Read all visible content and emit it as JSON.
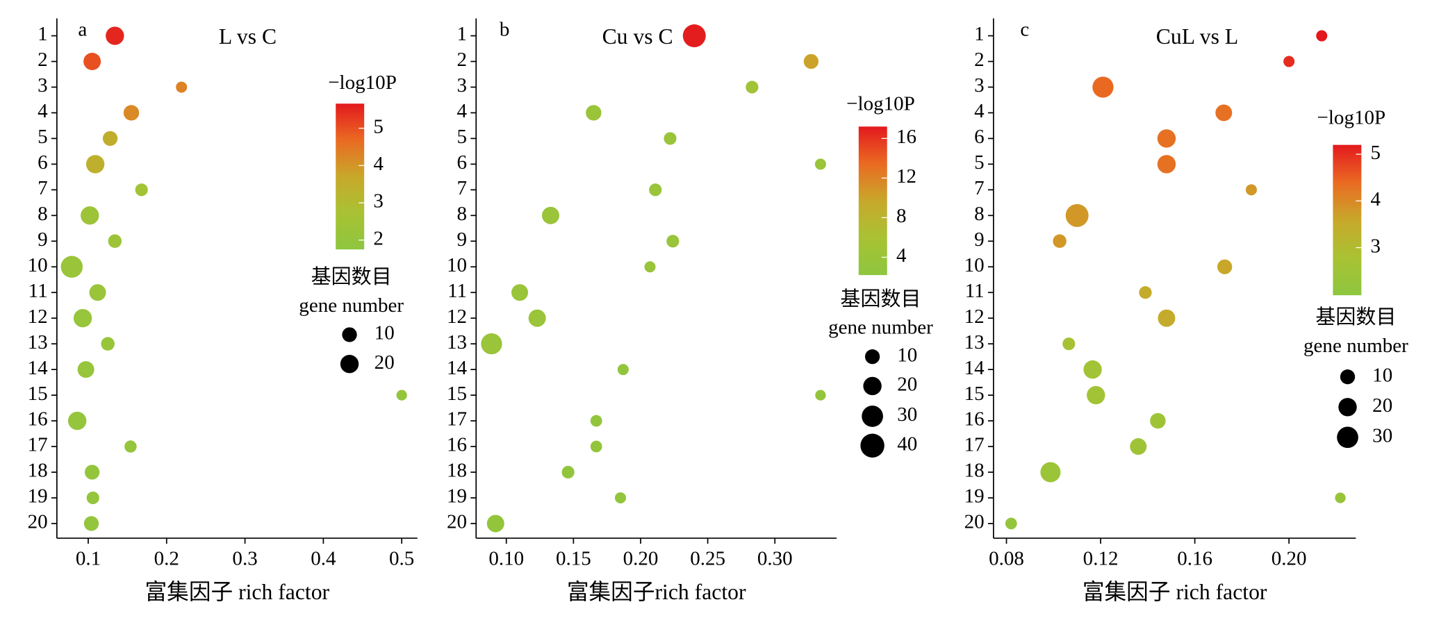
{
  "chart_data": [
    {
      "type": "bubble",
      "panel_label": "a",
      "title": "L vs C",
      "x_label": "富集因子 rich factor",
      "categories": [
        "1",
        "2",
        "3",
        "4",
        "5",
        "6",
        "7",
        "8",
        "9",
        "10",
        "11",
        "12",
        "13",
        "14",
        "15",
        "16",
        "17",
        "18",
        "19",
        "20"
      ],
      "x": [
        0.134,
        0.105,
        0.219,
        0.155,
        0.128,
        0.109,
        0.168,
        0.102,
        0.134,
        0.079,
        0.112,
        0.093,
        0.125,
        0.097,
        0.5,
        0.086,
        0.154,
        0.105,
        0.106,
        0.104
      ],
      "sizes": [
        20,
        17,
        2,
        12,
        10,
        20,
        5,
        20,
        7,
        32,
        15,
        20,
        7,
        15,
        1,
        20,
        4,
        10,
        5,
        10
      ],
      "color_values": [
        5.5,
        5.0,
        4.3,
        4.2,
        3.5,
        3.4,
        2.5,
        2.3,
        2.3,
        2.2,
        2.2,
        2.1,
        2.1,
        2.1,
        2.0,
        2.0,
        2.0,
        2.0,
        2.0,
        2.0
      ],
      "xlim": [
        0.06,
        0.52
      ],
      "xticks": [
        0.1,
        0.2,
        0.3,
        0.4,
        0.5
      ],
      "colorbar_title": "−log10P",
      "clim": [
        1.75,
        5.66
      ],
      "cticks": [
        2,
        3,
        4,
        5
      ],
      "size_legend_title": [
        "基因数目",
        "gene number"
      ],
      "size_legend": [
        10,
        20
      ],
      "colormap": [
        "#8dc63f",
        "#a9c233",
        "#c8a82a",
        "#ea6a22",
        "#e3191e"
      ]
    },
    {
      "type": "bubble",
      "panel_label": "b",
      "title": "Cu vs C",
      "x_label": "富集因子rich factor",
      "categories": [
        "1",
        "2",
        "3",
        "4",
        "5",
        "6",
        "7",
        "8",
        "9",
        "10",
        "11",
        "12",
        "13",
        "14",
        "15",
        "17",
        "16",
        "18",
        "19",
        "20"
      ],
      "x": [
        0.24,
        0.327,
        0.283,
        0.165,
        0.222,
        0.334,
        0.211,
        0.133,
        0.224,
        0.207,
        0.11,
        0.123,
        0.089,
        0.187,
        0.334,
        0.167,
        0.167,
        0.146,
        0.185,
        0.092
      ],
      "sizes": [
        36,
        10,
        5,
        12,
        5,
        2,
        5,
        17,
        5,
        2,
        15,
        17,
        29,
        2,
        1,
        3,
        3,
        5,
        2,
        17
      ],
      "color_values": [
        17,
        10,
        5,
        4,
        4,
        4,
        4,
        4,
        4,
        4,
        4,
        4,
        4,
        3,
        3,
        3,
        3,
        3,
        3,
        3
      ],
      "xlim": [
        0.0775,
        0.346
      ],
      "xticks": [
        {
          "value": 0.1,
          "label": "0.10"
        },
        0.15,
        {
          "value": 0.2,
          "label": "0.20"
        },
        0.25,
        {
          "value": 0.3,
          "label": "0.30"
        }
      ],
      "colorbar_title": "−log10P",
      "clim": [
        2.2,
        17.2
      ],
      "cticks": [
        4,
        8,
        12,
        16
      ],
      "size_legend_title": [
        "基因数目",
        "gene number"
      ],
      "size_legend": [
        10,
        20,
        30,
        40
      ],
      "colormap": [
        "#8dc63f",
        "#a9c233",
        "#c8a82a",
        "#ea6a22",
        "#e3191e"
      ]
    },
    {
      "type": "bubble",
      "panel_label": "c",
      "title": "CuL vs L",
      "x_label": "富集因子 rich factor",
      "categories": [
        "1",
        "2",
        "3",
        "4",
        "6",
        "5",
        "7",
        "8",
        "9",
        "10",
        "11",
        "12",
        "13",
        "14",
        "15",
        "16",
        "17",
        "18",
        "19",
        "20"
      ],
      "x": [
        0.2139,
        0.2,
        0.121,
        0.1723,
        0.148,
        0.148,
        0.184,
        0.11,
        0.1026,
        0.1727,
        0.139,
        0.148,
        0.1065,
        0.1166,
        0.118,
        0.1443,
        0.136,
        0.0987,
        0.2218,
        0.082
      ],
      "sizes": [
        2,
        2,
        29,
        15,
        20,
        20,
        2,
        36,
        7,
        10,
        5,
        17,
        5,
        20,
        20,
        12,
        15,
        26,
        1,
        3
      ],
      "color_values": [
        5.2,
        5.0,
        4.4,
        4.3,
        4.3,
        4.3,
        3.8,
        3.8,
        3.8,
        3.6,
        3.5,
        3.5,
        2.7,
        2.6,
        2.6,
        2.5,
        2.5,
        2.4,
        2.3,
        2.2
      ],
      "xlim": [
        0.0745,
        0.2284
      ],
      "xticks": [
        0.08,
        0.12,
        0.16,
        {
          "value": 0.2,
          "label": "0.20"
        }
      ],
      "colorbar_title": "−log10P",
      "clim": [
        1.98,
        5.2
      ],
      "cticks": [
        3,
        4,
        5
      ],
      "size_legend_title": [
        "基因数目",
        "gene number"
      ],
      "size_legend": [
        10,
        20,
        30
      ],
      "colormap": [
        "#8dc63f",
        "#a9c233",
        "#c8a82a",
        "#ea6a22",
        "#e3191e"
      ]
    }
  ]
}
